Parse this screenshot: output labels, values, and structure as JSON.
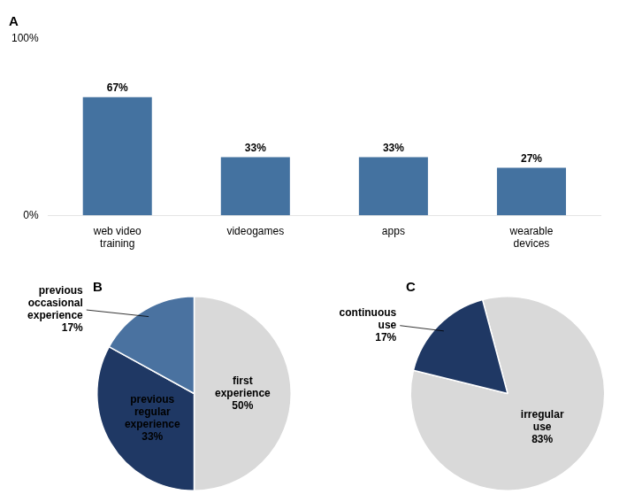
{
  "chart_data": [
    {
      "type": "bar",
      "title": "A",
      "categories": [
        "web video\ntraining",
        "videogames",
        "apps",
        "wearable\ndevices"
      ],
      "values": [
        67,
        33,
        33,
        27
      ],
      "value_labels": [
        "67%",
        "33%",
        "33%",
        "27%"
      ],
      "data_labels": true,
      "color": "#4472a0",
      "ylim": [
        0,
        100
      ],
      "yticks": [
        {
          "value": 0,
          "label": "0%"
        },
        {
          "value": 100,
          "label": "100%"
        }
      ],
      "grid": false
    },
    {
      "type": "pie",
      "title": "B",
      "categories": [
        "first\nexperience",
        "previous\nregular\nexperience",
        "previous\noccasional\nexperience"
      ],
      "values": [
        50,
        33,
        17
      ],
      "value_labels": [
        "50%",
        "33%",
        "17%"
      ],
      "data_labels": true,
      "colors": [
        "#d9d9d9",
        "#1f3864",
        "#4a72a0"
      ]
    },
    {
      "type": "pie",
      "title": "C",
      "categories": [
        "irregular\nuse",
        "continuous\nuse"
      ],
      "values": [
        83,
        17
      ],
      "value_labels": [
        "83%",
        "17%"
      ],
      "data_labels": true,
      "colors": [
        "#d9d9d9",
        "#1f3864"
      ]
    }
  ]
}
